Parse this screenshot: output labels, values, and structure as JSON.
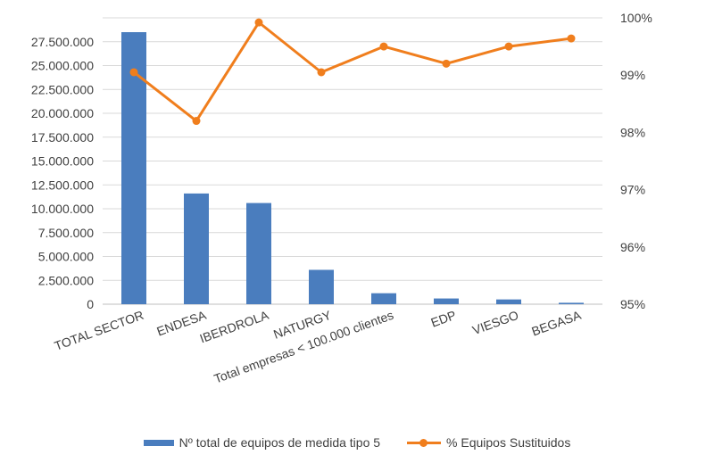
{
  "chart_data": {
    "type": "bar+line",
    "categories": [
      "TOTAL SECTOR",
      "ENDESA",
      "IBERDROLA",
      "NATURGY",
      "Total empresas < 100.000 clientes",
      "EDP",
      "VIESGO",
      "BEGASA"
    ],
    "series": [
      {
        "name": "Nº total de equipos de medida tipo 5",
        "type": "bar",
        "axis": "left",
        "color": "#4a7dbe",
        "values": [
          28500000,
          11600000,
          10600000,
          3600000,
          1150000,
          600000,
          500000,
          150000
        ]
      },
      {
        "name": "% Equipos Sustituidos",
        "type": "line",
        "axis": "right",
        "color": "#f07e1d",
        "values": [
          99.05,
          98.2,
          99.92,
          99.05,
          99.5,
          99.2,
          99.5,
          99.64
        ]
      }
    ],
    "y_left": {
      "range": [
        0,
        30000000
      ],
      "ticks": [
        0,
        2500000,
        5000000,
        7500000,
        10000000,
        12500000,
        15000000,
        17500000,
        20000000,
        22500000,
        25000000,
        27500000
      ],
      "tick_labels": [
        "0",
        "2.500.000",
        "5.000.000",
        "7.500.000",
        "10.000.000",
        "12.500.000",
        "15.000.000",
        "17.500.000",
        "20.000.000",
        "22.500.000",
        "25.000.000",
        "27.500.000"
      ]
    },
    "y_right": {
      "range": [
        95,
        100
      ],
      "ticks": [
        95,
        96,
        97,
        98,
        99,
        100
      ],
      "tick_labels": [
        "95%",
        "96%",
        "97%",
        "98%",
        "99%",
        "100%"
      ]
    },
    "grid": true,
    "legend_position": "bottom"
  }
}
